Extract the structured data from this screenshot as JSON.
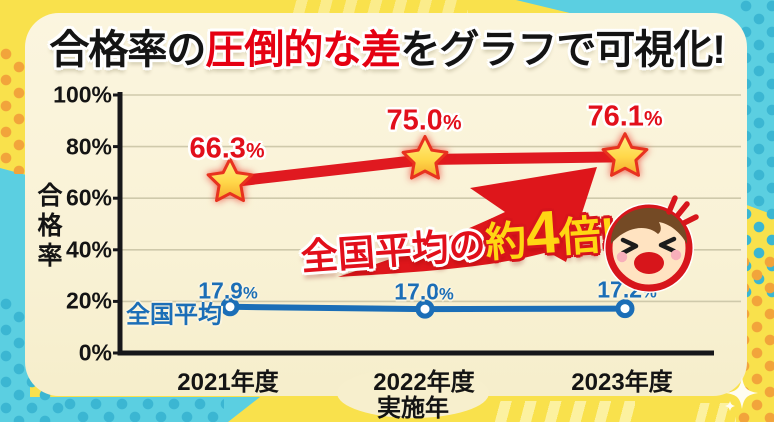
{
  "title": {
    "pre": "合格率の",
    "highlight": "圧倒的な差",
    "post": "をグラフで可視化!"
  },
  "chart_data": {
    "type": "line",
    "x": [
      "2021年度",
      "2022年度",
      "2023年度"
    ],
    "xlabel": "実施年",
    "ylabel": "合格率",
    "ylim": [
      0,
      100
    ],
    "yticks": [
      "100%",
      "80%",
      "60%",
      "40%",
      "20%",
      "0%"
    ],
    "grid": true,
    "series": [
      {
        "name": "合格率",
        "marker": "star",
        "color": "#e01920",
        "values": [
          66.3,
          75.0,
          76.1
        ],
        "labels": [
          {
            "value": "66.3",
            "unit": "%"
          },
          {
            "value": "75.0",
            "unit": "%"
          },
          {
            "value": "76.1",
            "unit": "%"
          }
        ]
      },
      {
        "name": "全国平均",
        "marker": "circle",
        "color": "#1b6eb7",
        "values": [
          17.9,
          17.0,
          17.2
        ],
        "labels": [
          {
            "value": "17.9",
            "unit": "%"
          },
          {
            "value": "17.0",
            "unit": "%"
          },
          {
            "value": "17.2",
            "unit": "%"
          }
        ]
      }
    ],
    "legend_position": "inline-left-of-first-point"
  },
  "annotation": {
    "part_red": "全国平均の",
    "part_yellow_1": "約",
    "part_big": "4",
    "part_yellow_2": "倍",
    "bang": "!"
  },
  "icons": {
    "star_marker": "★",
    "face": "winking-child-face",
    "sparkle": "✦",
    "emphasis_marks": "radiating-dashes"
  },
  "colors": {
    "background_yellow": "#f9e14c",
    "background_cyan": "#5bcfe1",
    "card_cream": "#faf4db",
    "accent_red": "#e01920",
    "accent_blue": "#1b6eb7",
    "title_red": "#e50012",
    "star_gold": "#ffd84a",
    "annotation_yellow": "#ffd613"
  }
}
